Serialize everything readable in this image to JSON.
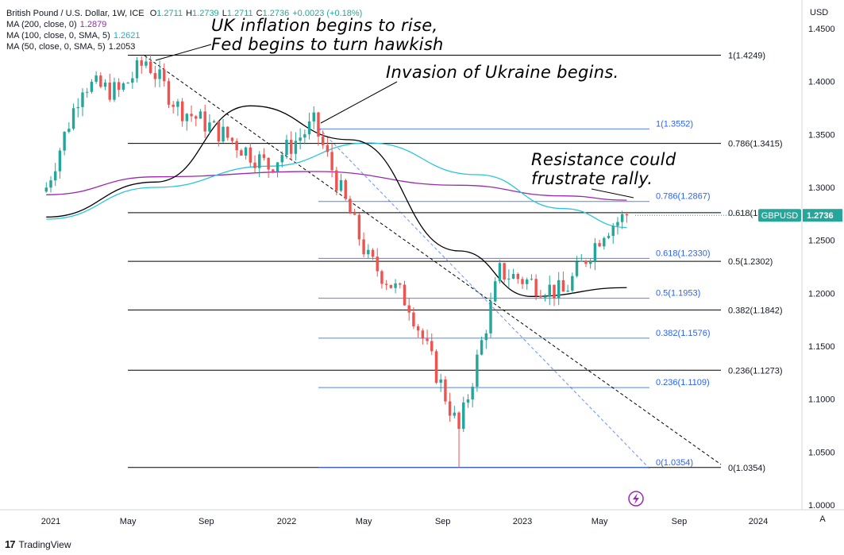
{
  "legend": {
    "symbol": "British Pound / U.S. Dollar, 1W, ICE",
    "ohlc": [
      {
        "label": "O",
        "value": "1.2711"
      },
      {
        "label": "H",
        "value": "1.2739"
      },
      {
        "label": "L",
        "value": "1.2711"
      },
      {
        "label": "C",
        "value": "1.2736"
      },
      {
        "label": "",
        "value": "+0.0023 (+0.18%)"
      }
    ],
    "mas": [
      {
        "label": "MA (200, close, 0)",
        "value": "1.2879",
        "color": "#9c27b0"
      },
      {
        "label": "MA (100, close, 0, SMA, 5)",
        "value": "1.2621",
        "color": "#00bcd4"
      },
      {
        "label": "MA (50, close, 0, SMA, 5)",
        "value": "1.2053",
        "color": "#131722"
      }
    ]
  },
  "annotations": {
    "uk_inflation_line1": "UK inflation begins to rise,",
    "uk_inflation_line2": "Fed begins to turn hawkish",
    "ukraine": "Invasion of Ukraine begins.",
    "resistance_line1": "Resistance could",
    "resistance_line2": "frustrate rally."
  },
  "currency": "USD",
  "price_tag": {
    "symbol": "GBPUSD",
    "value": "1.2736"
  },
  "footer": {
    "brand": "TradingView"
  },
  "auto_label": "A",
  "colors": {
    "up": "#26a69a",
    "down": "#ef5350",
    "ma200": "#9c27b0",
    "ma100": "#26c6da",
    "ma50": "#000000",
    "fib_blue": "#2962ff",
    "fib_black": "#000000",
    "tag_bg": "#26a69a"
  },
  "chart_data": {
    "type": "candlestick",
    "timeframe": "1W",
    "y_axis": {
      "ticks": [
        "1.4500",
        "1.4000",
        "1.3500",
        "1.3000",
        "1.2500",
        "1.2000",
        "1.1500",
        "1.1000",
        "1.0500",
        "1.0000"
      ],
      "range": [
        1.0,
        1.45
      ]
    },
    "x_axis": {
      "ticks": [
        "2021",
        "May",
        "Sep",
        "2022",
        "May",
        "Sep",
        "2023",
        "May",
        "Sep",
        "2024"
      ]
    },
    "fib_retracement_black": [
      {
        "label": "1(1.4249)",
        "value": 1.4249
      },
      {
        "label": "0.786(1.3415)",
        "value": 1.3415
      },
      {
        "label": "0.618(1.2761)",
        "value": 1.2761
      },
      {
        "label": "0.5(1.2302)",
        "value": 1.2302
      },
      {
        "label": "0.382(1.1842)",
        "value": 1.1842
      },
      {
        "label": "0.236(1.1273)",
        "value": 1.1273
      },
      {
        "label": "0(1.0354)",
        "value": 1.0354
      }
    ],
    "fib_retracement_blue": [
      {
        "label": "1(1.3552)",
        "value": 1.3552
      },
      {
        "label": "0.786(1.2867)",
        "value": 1.2867
      },
      {
        "label": "0.618(1.2330)",
        "value": 1.233
      },
      {
        "label": "0.5(1.1953)",
        "value": 1.1953
      },
      {
        "label": "0.382(1.1576)",
        "value": 1.1576
      },
      {
        "label": "0.236(1.1109)",
        "value": 1.1109
      },
      {
        "label": "0(1.0354)",
        "value": 1.0354
      }
    ],
    "close_path": [
      {
        "date": "2020-12-28",
        "close": 1.3
      },
      {
        "date": "2021-02-22",
        "close": 1.398
      },
      {
        "date": "2021-04-19",
        "close": 1.39
      },
      {
        "date": "2021-05-31",
        "close": 1.42
      },
      {
        "date": "2021-07-19",
        "close": 1.376
      },
      {
        "date": "2021-09-27",
        "close": 1.35
      },
      {
        "date": "2021-12-06",
        "close": 1.32
      },
      {
        "date": "2022-02-14",
        "close": 1.36
      },
      {
        "date": "2022-05-09",
        "close": 1.232
      },
      {
        "date": "2022-07-11",
        "close": 1.19
      },
      {
        "date": "2022-09-26",
        "close": 1.07
      },
      {
        "date": "2022-11-28",
        "close": 1.22
      },
      {
        "date": "2023-03-06",
        "close": 1.2
      },
      {
        "date": "2023-05-08",
        "close": 1.26
      },
      {
        "date": "2023-06-12",
        "close": 1.2736
      }
    ],
    "series": [
      {
        "name": "MA (200, close, 0)",
        "points": [
          [
            "2020-12-28",
            1.293
          ],
          [
            "2021-06-14",
            1.31
          ],
          [
            "2022-02-14",
            1.315
          ],
          [
            "2022-09-26",
            1.302
          ],
          [
            "2023-03-06",
            1.292
          ],
          [
            "2023-06-12",
            1.2879
          ]
        ]
      },
      {
        "name": "MA (100, close, 0, SMA, 5)",
        "points": [
          [
            "2020-12-28",
            1.27
          ],
          [
            "2021-06-14",
            1.3
          ],
          [
            "2021-12-06",
            1.32
          ],
          [
            "2022-05-09",
            1.342
          ],
          [
            "2022-10-24",
            1.312
          ],
          [
            "2023-03-06",
            1.28
          ],
          [
            "2023-06-12",
            1.2621
          ]
        ]
      },
      {
        "name": "MA (50, close, 0, SMA, 5)",
        "points": [
          [
            "2020-12-28",
            1.272
          ],
          [
            "2021-06-14",
            1.305
          ],
          [
            "2021-11-08",
            1.377
          ],
          [
            "2022-04-11",
            1.345
          ],
          [
            "2022-09-26",
            1.24
          ],
          [
            "2023-01-16",
            1.197
          ],
          [
            "2023-06-12",
            1.2053
          ]
        ]
      }
    ]
  }
}
